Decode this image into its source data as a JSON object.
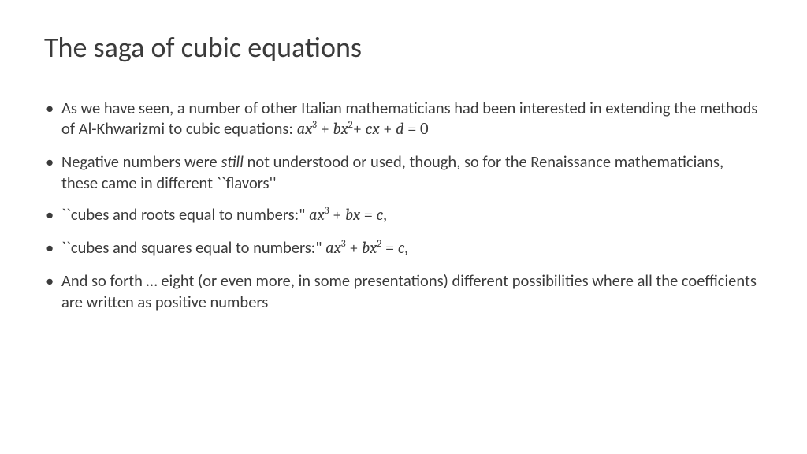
{
  "title": "The saga of cubic equations",
  "bullets": {
    "b1_pre": "As we have seen, a number of other Italian mathematicians had been interested in extending the methods of Al-Khwarizmi to cubic equations:   ",
    "b2_pre": "Negative numbers were ",
    "b2_it": "still",
    "b2_post": " not understood or used, though, so for the Renaissance mathematicians, these came in different ``flavors''",
    "b3_pre": "``cubes and roots equal to numbers:\"  ",
    "b4_pre": "``cubes and squares equal to numbers:\"  ",
    "b5": "And so forth … eight (or even more, in some presentations) different possibilities where all the coefficients are written as positive numbers"
  },
  "math": {
    "a": "a",
    "b": "b",
    "c": "c",
    "d": "d",
    "x": "x",
    "three": "3",
    "two": "2",
    "plus": " + ",
    "eq": " = ",
    "zero": "0",
    "comma": ","
  }
}
